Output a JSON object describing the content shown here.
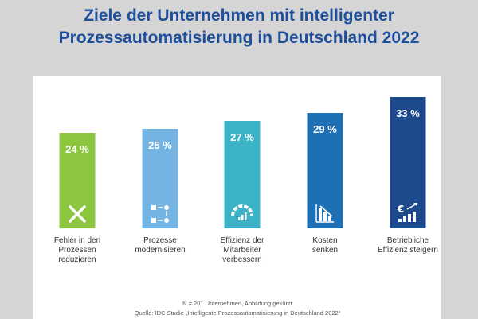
{
  "title_line1": "Ziele der Unternehmen mit intelligenter",
  "title_line2": "Prozessautomatisierung in Deutschland 2022",
  "note": "N = 201 Unternehmen, Abbildung gekürzt",
  "source": "Quelle: IDC Studie „Intelligente Prozessautomatisierung in Deutschland 2022“",
  "colors": {
    "background": "#d5d5d5",
    "title": "#1d4f9c",
    "bars": [
      "#8cc63f",
      "#73b4e3",
      "#3bb3c5",
      "#1f6fb5",
      "#1d4a8c"
    ],
    "label": "#333333"
  },
  "chart_data": {
    "type": "bar",
    "title": "Ziele der Unternehmen mit intelligenter Prozessautomatisierung in Deutschland 2022",
    "categories": [
      [
        "Fehler in den",
        "Prozessen",
        "reduzieren"
      ],
      [
        "Prozesse",
        "modernisieren"
      ],
      [
        "Effizienz der",
        "Mitarbeiter",
        "verbessern"
      ],
      [
        "Kosten",
        "senken"
      ],
      [
        "Betriebliche",
        "Effizienz steigern"
      ]
    ],
    "values": [
      24,
      25,
      27,
      29,
      33
    ],
    "value_labels": [
      "24 %",
      "25 %",
      "27 %",
      "29 %",
      "33 %"
    ],
    "icons": [
      "close-icon",
      "process-flow-icon",
      "gauge-icon",
      "declining-chart-icon",
      "euro-growth-icon"
    ],
    "ylim": [
      0,
      33
    ],
    "grid": false,
    "legend": "none"
  }
}
